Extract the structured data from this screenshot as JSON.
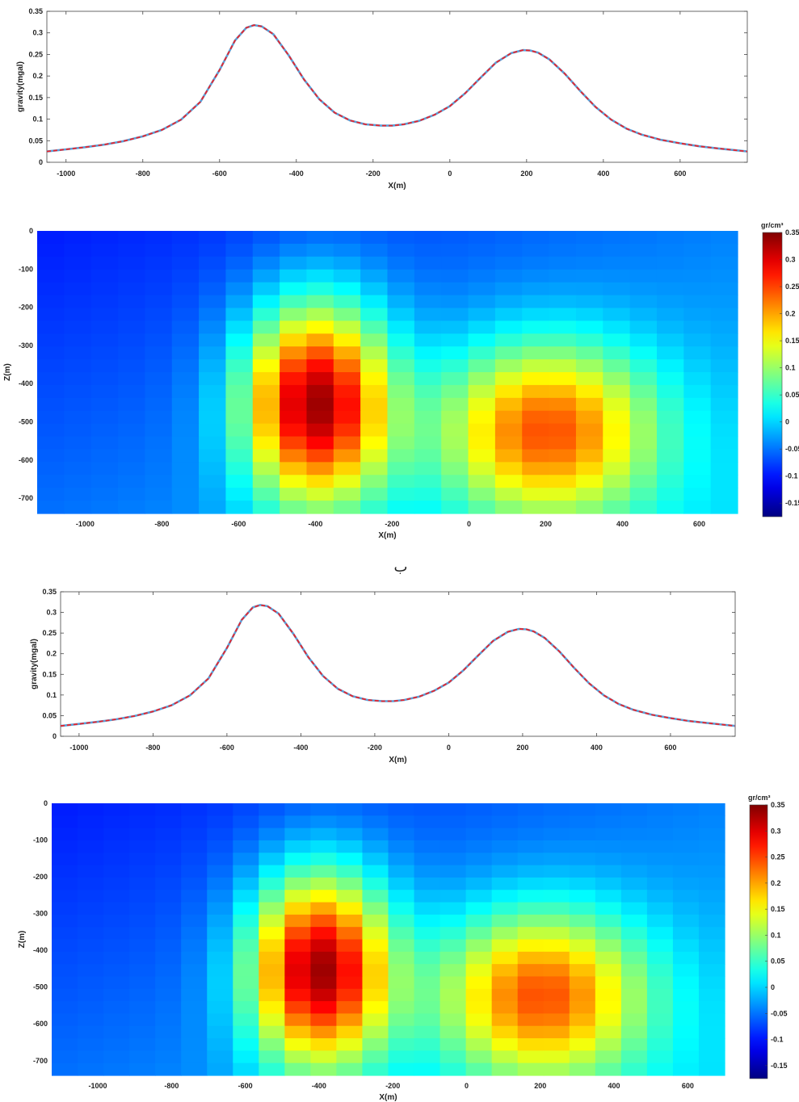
{
  "figure": {
    "separator_label": "ب"
  },
  "chart_data": [
    {
      "type": "line",
      "panel": "top-gravity",
      "xlabel": "X(m)",
      "ylabel": "gravity(mgal)",
      "xlim": [
        -1050,
        775
      ],
      "ylim": [
        0,
        0.35
      ],
      "xticks": [
        -1000,
        -800,
        -600,
        -400,
        -200,
        0,
        200,
        400,
        600
      ],
      "yticks": [
        0,
        0.05,
        0.1,
        0.15,
        0.2,
        0.25,
        0.3,
        0.35
      ],
      "grid": false,
      "series": [
        {
          "style": "observed",
          "color": "#5aa0d8",
          "x": [
            -1050,
            -1000,
            -950,
            -900,
            -850,
            -800,
            -750,
            -700,
            -650,
            -600,
            -560,
            -530,
            -510,
            -490,
            -460,
            -420,
            -380,
            -340,
            -300,
            -260,
            -220,
            -180,
            -150,
            -120,
            -80,
            -40,
            0,
            40,
            80,
            120,
            160,
            190,
            210,
            230,
            260,
            300,
            340,
            380,
            420,
            460,
            500,
            550,
            600,
            650,
            700,
            775
          ],
          "y": [
            0.025,
            0.03,
            0.035,
            0.041,
            0.049,
            0.06,
            0.075,
            0.099,
            0.14,
            0.214,
            0.282,
            0.312,
            0.318,
            0.315,
            0.297,
            0.248,
            0.192,
            0.146,
            0.115,
            0.097,
            0.088,
            0.085,
            0.085,
            0.088,
            0.096,
            0.11,
            0.13,
            0.16,
            0.196,
            0.231,
            0.253,
            0.26,
            0.259,
            0.254,
            0.238,
            0.205,
            0.165,
            0.128,
            0.099,
            0.078,
            0.064,
            0.052,
            0.044,
            0.037,
            0.032,
            0.025
          ]
        },
        {
          "style": "calculated",
          "color": "#e8242b",
          "x": [
            -1050,
            -1000,
            -950,
            -900,
            -850,
            -800,
            -750,
            -700,
            -650,
            -600,
            -560,
            -530,
            -510,
            -490,
            -460,
            -420,
            -380,
            -340,
            -300,
            -260,
            -220,
            -180,
            -150,
            -120,
            -80,
            -40,
            0,
            40,
            80,
            120,
            160,
            190,
            210,
            230,
            260,
            300,
            340,
            380,
            420,
            460,
            500,
            550,
            600,
            650,
            700,
            775
          ],
          "y": [
            0.025,
            0.03,
            0.035,
            0.041,
            0.049,
            0.06,
            0.075,
            0.099,
            0.14,
            0.214,
            0.282,
            0.312,
            0.318,
            0.315,
            0.297,
            0.248,
            0.192,
            0.146,
            0.115,
            0.097,
            0.088,
            0.085,
            0.085,
            0.088,
            0.096,
            0.11,
            0.13,
            0.16,
            0.196,
            0.231,
            0.253,
            0.26,
            0.259,
            0.254,
            0.238,
            0.205,
            0.165,
            0.128,
            0.099,
            0.078,
            0.064,
            0.052,
            0.044,
            0.037,
            0.032,
            0.025
          ]
        }
      ]
    },
    {
      "type": "heatmap",
      "panel": "top-density",
      "xlabel": "X(m)",
      "ylabel": "Z(m)",
      "xlim": [
        -1125,
        700
      ],
      "ylim": [
        -740,
        0
      ],
      "xticks": [
        -1000,
        -800,
        -600,
        -400,
        -200,
        0,
        200,
        400,
        600
      ],
      "yticks": [
        0,
        -100,
        -200,
        -300,
        -400,
        -500,
        -600,
        -700
      ],
      "colorbar": {
        "title": "gr/cm³",
        "range": [
          -0.175,
          0.35
        ],
        "ticks": [
          0.35,
          0.3,
          0.25,
          0.2,
          0.15,
          0.1,
          0.05,
          0,
          -0.05,
          -0.1,
          -0.15
        ],
        "colormap": "jet"
      },
      "grid_size": {
        "rows": 22,
        "cols": 26
      },
      "anomalies": [
        {
          "center_x": -400,
          "center_z": -450,
          "peak_density": 0.29
        },
        {
          "center_x": 200,
          "center_z": -520,
          "peak_density": 0.21
        }
      ]
    },
    {
      "type": "line",
      "panel": "bottom-gravity",
      "xlabel": "X(m)",
      "ylabel": "gravity(mgal)",
      "xlim": [
        -1050,
        775
      ],
      "ylim": [
        0,
        0.35
      ],
      "xticks": [
        -1000,
        -800,
        -600,
        -400,
        -200,
        0,
        200,
        400,
        600
      ],
      "yticks": [
        0,
        0.05,
        0.1,
        0.15,
        0.2,
        0.25,
        0.3,
        0.35
      ],
      "grid": false,
      "series": [
        {
          "style": "observed",
          "color": "#5aa0d8",
          "x": [
            -1050,
            -1000,
            -950,
            -900,
            -850,
            -800,
            -750,
            -700,
            -650,
            -600,
            -560,
            -530,
            -510,
            -490,
            -460,
            -420,
            -380,
            -340,
            -300,
            -260,
            -220,
            -180,
            -150,
            -120,
            -80,
            -40,
            0,
            40,
            80,
            120,
            160,
            190,
            210,
            230,
            260,
            300,
            340,
            380,
            420,
            460,
            500,
            550,
            600,
            650,
            700,
            775
          ],
          "y": [
            0.025,
            0.03,
            0.035,
            0.041,
            0.049,
            0.06,
            0.075,
            0.099,
            0.14,
            0.214,
            0.282,
            0.312,
            0.318,
            0.315,
            0.297,
            0.248,
            0.192,
            0.146,
            0.115,
            0.097,
            0.088,
            0.085,
            0.085,
            0.088,
            0.096,
            0.11,
            0.13,
            0.16,
            0.196,
            0.231,
            0.253,
            0.26,
            0.259,
            0.254,
            0.238,
            0.205,
            0.165,
            0.128,
            0.099,
            0.078,
            0.064,
            0.052,
            0.044,
            0.037,
            0.032,
            0.025
          ]
        },
        {
          "style": "calculated",
          "color": "#e8242b",
          "x": [
            -1050,
            -1000,
            -950,
            -900,
            -850,
            -800,
            -750,
            -700,
            -650,
            -600,
            -560,
            -530,
            -510,
            -490,
            -460,
            -420,
            -380,
            -340,
            -300,
            -260,
            -220,
            -180,
            -150,
            -120,
            -80,
            -40,
            0,
            40,
            80,
            120,
            160,
            190,
            210,
            230,
            260,
            300,
            340,
            380,
            420,
            460,
            500,
            550,
            600,
            650,
            700,
            775
          ],
          "y": [
            0.025,
            0.03,
            0.035,
            0.041,
            0.049,
            0.06,
            0.075,
            0.099,
            0.14,
            0.214,
            0.282,
            0.312,
            0.318,
            0.315,
            0.297,
            0.248,
            0.192,
            0.146,
            0.115,
            0.097,
            0.088,
            0.085,
            0.085,
            0.088,
            0.096,
            0.11,
            0.13,
            0.16,
            0.196,
            0.231,
            0.253,
            0.26,
            0.259,
            0.254,
            0.238,
            0.205,
            0.165,
            0.128,
            0.099,
            0.078,
            0.064,
            0.052,
            0.044,
            0.037,
            0.032,
            0.025
          ]
        }
      ]
    },
    {
      "type": "heatmap",
      "panel": "bottom-density",
      "xlabel": "X(m)",
      "ylabel": "Z(m)",
      "xlim": [
        -1125,
        700
      ],
      "ylim": [
        -740,
        0
      ],
      "xticks": [
        -1000,
        -800,
        -600,
        -400,
        -200,
        0,
        200,
        400,
        600
      ],
      "yticks": [
        0,
        -100,
        -200,
        -300,
        -400,
        -500,
        -600,
        -700
      ],
      "colorbar": {
        "title": "gr/cm³",
        "range": [
          -0.175,
          0.35
        ],
        "ticks": [
          0.35,
          0.3,
          0.25,
          0.2,
          0.15,
          0.1,
          0.05,
          0,
          -0.05,
          -0.1,
          -0.15
        ],
        "colormap": "jet"
      },
      "grid_size": {
        "rows": 22,
        "cols": 26
      },
      "anomalies": [
        {
          "center_x": -400,
          "center_z": -450,
          "peak_density": 0.29
        },
        {
          "center_x": 200,
          "center_z": -520,
          "peak_density": 0.21
        }
      ]
    }
  ]
}
